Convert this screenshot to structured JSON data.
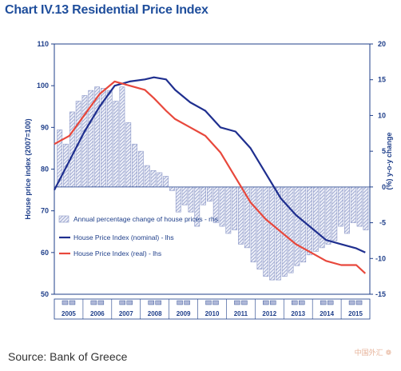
{
  "header": {
    "title": "Chart IV.13 Residential Price Index"
  },
  "footer": {
    "source": "Source: Bank of Greece",
    "watermark": "中国外汇 ❁"
  },
  "colors": {
    "nominal": "#1f2f8f",
    "real": "#e8483c",
    "bars": "#8c98c8",
    "text": "#1f3f8a"
  },
  "chart_data": {
    "type": "bar+line",
    "title": "Chart IV.13 Residential Price Index",
    "ylabel_left": "House price index (2007=100)",
    "ylabel_right": "(%) y-o-y change",
    "ylim_left": [
      50,
      110
    ],
    "ylim_right": [
      -15,
      20
    ],
    "yticks_left": [
      "50",
      "60",
      "70",
      "80",
      "90",
      "100",
      "110"
    ],
    "yticks_right": [
      "-15",
      "-10",
      "-5",
      "0",
      "5",
      "10",
      "15",
      "20"
    ],
    "years": [
      "2005",
      "2006",
      "2007",
      "2008",
      "2009",
      "2010",
      "2011",
      "2012",
      "2013",
      "2014",
      "2015"
    ],
    "legend_position": "bottom-left",
    "series": [
      {
        "name": "Annual percentage change of house prices - rhs",
        "type": "bar",
        "axis": "right",
        "values": [
          8,
          6,
          10.5,
          12,
          12.8,
          13.5,
          14,
          13.8,
          13.5,
          12,
          14,
          9,
          6,
          5,
          3,
          2.3,
          2,
          1.5,
          -0.5,
          -3.5,
          -2.5,
          -3.5,
          -5.5,
          -2.5,
          -2,
          -5,
          -5.5,
          -6.5,
          -6,
          -8,
          -8.5,
          -10.5,
          -11.5,
          -12.5,
          -13,
          -13,
          -12.5,
          -12,
          -11,
          -10.5,
          -9.5,
          -9,
          -8.5,
          -8,
          -7.5,
          -5.5,
          -6.5,
          -5,
          -5.5,
          -6
        ]
      },
      {
        "name": "House Price Index (nominal) - lhs",
        "type": "line",
        "axis": "left",
        "x": [
          2005.0,
          2005.5,
          2006.0,
          2006.5,
          2007.0,
          2007.5,
          2008.0,
          2008.3,
          2008.7,
          2009.0,
          2009.5,
          2010.0,
          2010.5,
          2011.0,
          2011.5,
          2012.0,
          2012.5,
          2013.0,
          2013.5,
          2014.0,
          2014.5,
          2015.0,
          2015.3
        ],
        "values": [
          75,
          82,
          89,
          95,
          100,
          101,
          101.5,
          102,
          101.5,
          99,
          96,
          94,
          90,
          89,
          85,
          79,
          73,
          69,
          66,
          63,
          62,
          61,
          60
        ]
      },
      {
        "name": "House Price Index (real) - lhs",
        "type": "line",
        "axis": "left",
        "x": [
          2005.0,
          2005.5,
          2006.0,
          2006.5,
          2007.0,
          2007.5,
          2008.0,
          2008.3,
          2008.7,
          2009.0,
          2009.5,
          2010.0,
          2010.5,
          2011.0,
          2011.5,
          2012.0,
          2012.5,
          2013.0,
          2013.5,
          2014.0,
          2014.5,
          2015.0,
          2015.3
        ],
        "values": [
          86,
          88,
          93,
          98,
          101,
          100,
          99,
          97,
          94,
          92,
          90,
          88,
          84,
          78,
          72,
          68,
          65,
          62,
          60,
          58,
          57,
          57,
          55
        ]
      }
    ]
  }
}
